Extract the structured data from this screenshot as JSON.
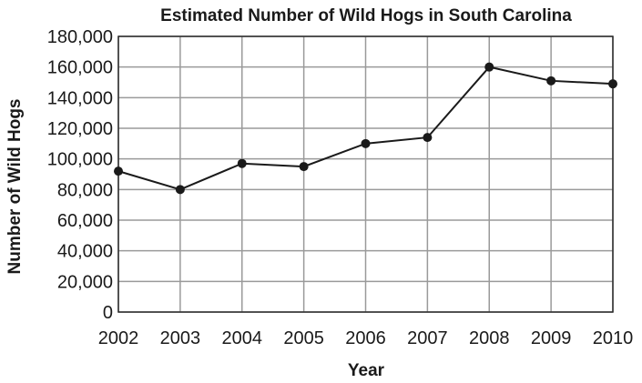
{
  "chart_data": {
    "type": "line",
    "title": "Estimated Number of Wild Hogs in South Carolina",
    "xlabel": "Year",
    "ylabel": "Number of Wild Hogs",
    "x": [
      "2002",
      "2003",
      "2004",
      "2005",
      "2006",
      "2007",
      "2008",
      "2009",
      "2010"
    ],
    "y_ticks": [
      "0",
      "20,000",
      "40,000",
      "60,000",
      "80,000",
      "100,000",
      "120,000",
      "140,000",
      "160,000",
      "180,000"
    ],
    "ylim": [
      0,
      180000
    ],
    "grid": true,
    "series": [
      {
        "values": [
          92000,
          80000,
          97000,
          95000,
          110000,
          114000,
          160000,
          151000,
          149000
        ]
      }
    ],
    "colors": {
      "line": "#1a1a1a",
      "grid": "#9a9a9a"
    }
  }
}
